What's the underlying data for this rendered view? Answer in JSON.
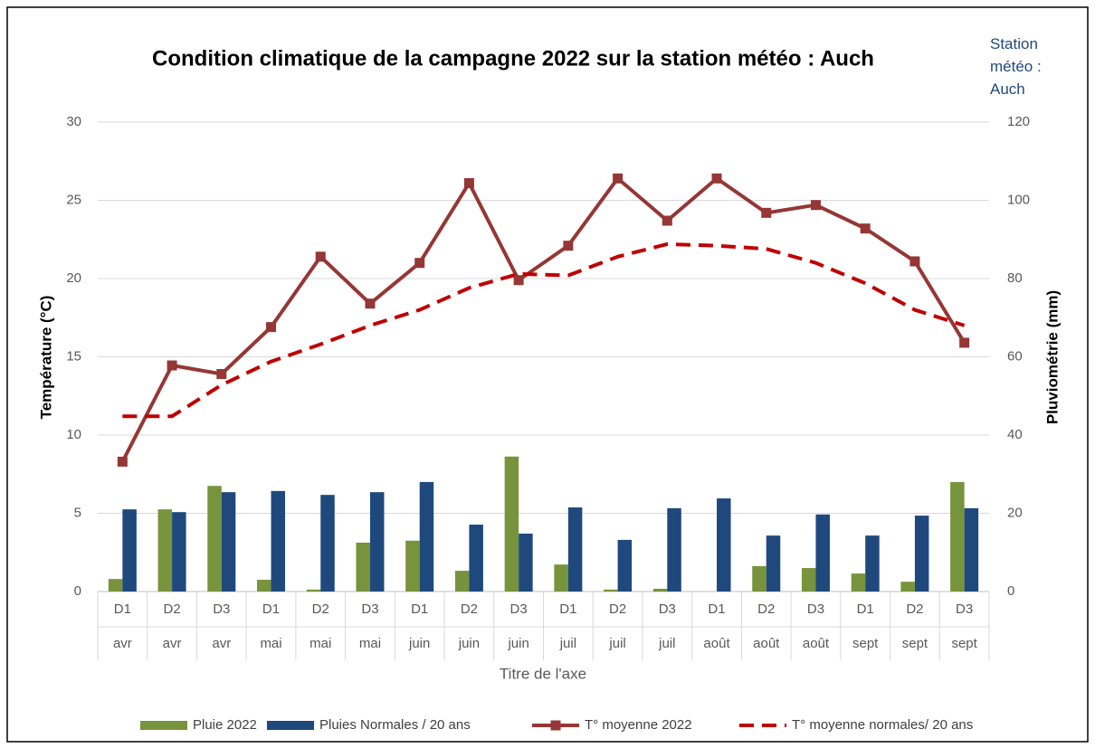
{
  "chart_data": {
    "type": "combo",
    "title": "Condition climatique de la campagne 2022 sur la station météo : Auch",
    "annotation": "Station météo : Auch",
    "x_label": "Titre de l'axe",
    "y_label": "Température  (°C)",
    "y2_label": "Pluviométrie (mm)",
    "categories": [
      "D1",
      "D2",
      "D3",
      "D1",
      "D2",
      "D3",
      "D1",
      "D2",
      "D3",
      "D1",
      "D2",
      "D3",
      "D1",
      "D2",
      "D3",
      "D1",
      "D2",
      "D3"
    ],
    "category_groups": [
      "avr",
      "avr",
      "avr",
      "mai",
      "mai",
      "mai",
      "juin",
      "juin",
      "juin",
      "juil",
      "juil",
      "juil",
      "août",
      "août",
      "août",
      "sept",
      "sept",
      "sept"
    ],
    "ylim": [
      0,
      30
    ],
    "yticks": [
      0,
      5,
      10,
      15,
      20,
      25,
      30
    ],
    "y2lim": [
      0,
      120
    ],
    "y2ticks": [
      0,
      20,
      40,
      60,
      80,
      100,
      120
    ],
    "grid": true,
    "legend": "bottom",
    "series": [
      {
        "name": "Pluie 2022",
        "type": "bar",
        "axis": "y2",
        "color": "#77933c",
        "values": [
          3.2,
          21,
          27,
          3,
          0.5,
          12.5,
          13,
          5.3,
          34.5,
          6.9,
          0.5,
          0.7,
          0,
          6.5,
          6,
          4.6,
          2.5,
          28
        ]
      },
      {
        "name": "Pluies Normales / 20 ans",
        "type": "bar",
        "axis": "y2",
        "color": "#1f497d",
        "values": [
          21,
          20.3,
          25.4,
          25.7,
          24.7,
          25.4,
          28,
          17.1,
          14.8,
          21.5,
          13.2,
          21.3,
          23.8,
          14.3,
          19.7,
          14.3,
          19.4,
          21.3
        ]
      },
      {
        "name": "T° moyenne 2022",
        "type": "line",
        "marker": "square",
        "color": "#953735",
        "values": [
          8.3,
          14.45,
          13.9,
          16.9,
          21.4,
          18.4,
          21.0,
          26.1,
          19.9,
          22.1,
          26.4,
          23.7,
          26.4,
          24.2,
          24.7,
          23.2,
          21.1,
          15.9
        ]
      },
      {
        "name": "T° moyenne normales/ 20 ans",
        "type": "line",
        "dashed": true,
        "color": "#c00000",
        "values": [
          11.2,
          11.2,
          13.2,
          14.7,
          15.8,
          17,
          18,
          19.4,
          20.3,
          20.2,
          21.4,
          22.2,
          22.1,
          21.9,
          21.0,
          19.7,
          18.0,
          17.0
        ]
      }
    ]
  }
}
